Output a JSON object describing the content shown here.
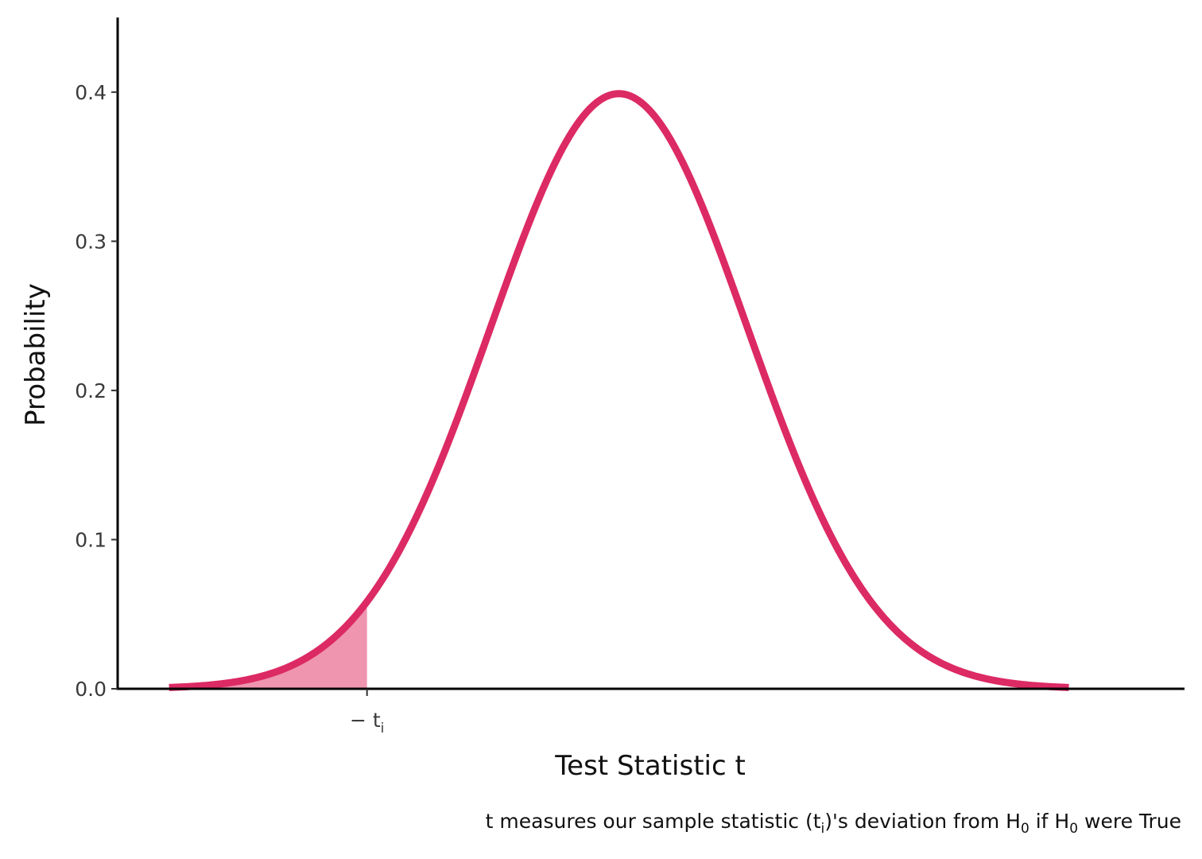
{
  "chart_data": {
    "type": "line",
    "title": "",
    "xlabel": "Test Statistic t",
    "ylabel": "Probability",
    "caption": {
      "part1": "t measures our sample statistic (t",
      "sub1": "i",
      "part2": ")'s deviation from H",
      "sub2": "0",
      "part3": " if H",
      "sub3": "0",
      "part4": " were True"
    },
    "xlim": [
      -3.9,
      4.4
    ],
    "ylim": [
      0,
      0.45
    ],
    "y_ticks": [
      0.0,
      0.1,
      0.2,
      0.3,
      0.4
    ],
    "y_tick_labels": [
      "0.0",
      "0.1",
      "0.2",
      "0.3",
      "0.4"
    ],
    "x_ticks": [
      {
        "value": -1.96,
        "label": "− t",
        "sub": "i"
      }
    ],
    "series": [
      {
        "distribution": "standard normal",
        "x_range": [
          -3.5,
          3.5
        ],
        "color": "#dc2a64"
      }
    ],
    "shaded_region": {
      "from": -3.5,
      "to": -1.96,
      "color": "#ef95b0"
    },
    "grid": false,
    "legend": "none"
  }
}
